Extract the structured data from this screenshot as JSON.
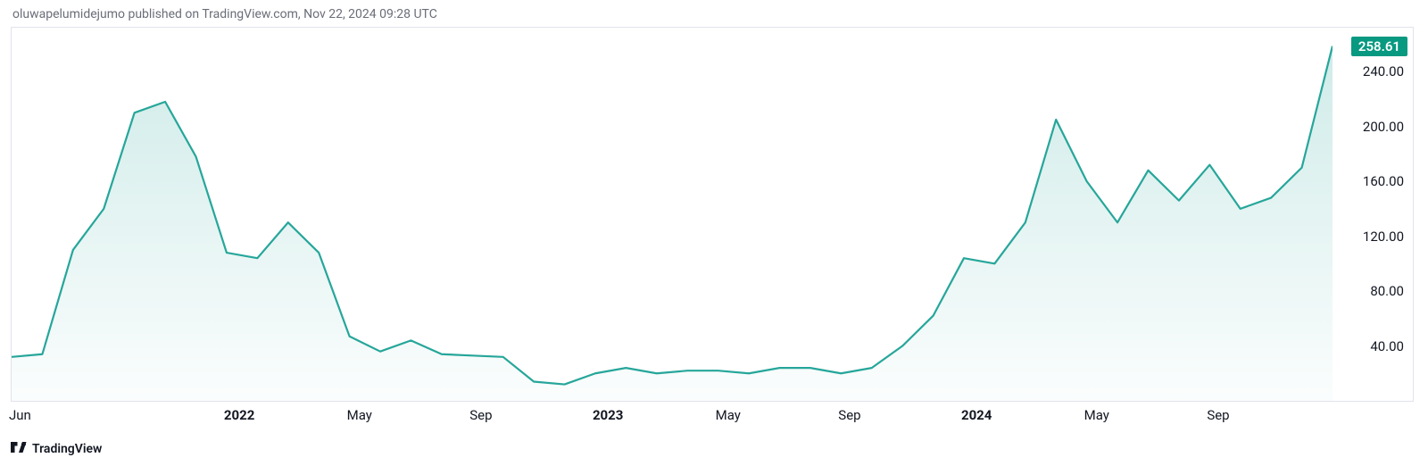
{
  "caption": "oluwapelumidejumo published on TradingView.com, Nov 22, 2024 09:28 UTC",
  "brand": "TradingView",
  "chart": {
    "type": "area",
    "line_color": "#26a69a",
    "line_width": 2.2,
    "fill_top_color": "rgba(38,166,154,0.22)",
    "fill_bottom_color": "rgba(38,166,154,0.02)",
    "background_color": "#ffffff",
    "border_color": "#e0e3eb",
    "tick_color": "#131722",
    "tick_fontsize": 15,
    "price_tag_bg": "#089981",
    "price_tag_text_color": "#ffffff",
    "current_value": "258.61",
    "y": {
      "min": 0,
      "max": 272,
      "ticks": [
        40.0,
        80.0,
        120.0,
        160.0,
        200.0,
        240.0
      ],
      "tick_labels": [
        "40.00",
        "80.00",
        "120.00",
        "160.00",
        "200.00",
        "240.00"
      ]
    },
    "x": {
      "min": 0,
      "max": 43,
      "ticks": [
        {
          "pos": 0,
          "label": "Jun",
          "bold": false
        },
        {
          "pos": 7,
          "label": "2022",
          "bold": true
        },
        {
          "pos": 11,
          "label": "May",
          "bold": false
        },
        {
          "pos": 15,
          "label": "Sep",
          "bold": false
        },
        {
          "pos": 19,
          "label": "2023",
          "bold": true
        },
        {
          "pos": 23,
          "label": "May",
          "bold": false
        },
        {
          "pos": 27,
          "label": "Sep",
          "bold": false
        },
        {
          "pos": 31,
          "label": "2024",
          "bold": true
        },
        {
          "pos": 35,
          "label": "May",
          "bold": false
        },
        {
          "pos": 39,
          "label": "Sep",
          "bold": false
        }
      ]
    },
    "series": [
      {
        "x": 0,
        "y": 32
      },
      {
        "x": 1,
        "y": 34
      },
      {
        "x": 2,
        "y": 110
      },
      {
        "x": 3,
        "y": 140
      },
      {
        "x": 4,
        "y": 210
      },
      {
        "x": 5,
        "y": 218
      },
      {
        "x": 6,
        "y": 178
      },
      {
        "x": 7,
        "y": 108
      },
      {
        "x": 8,
        "y": 104
      },
      {
        "x": 9,
        "y": 130
      },
      {
        "x": 10,
        "y": 108
      },
      {
        "x": 11,
        "y": 47
      },
      {
        "x": 12,
        "y": 36
      },
      {
        "x": 13,
        "y": 44
      },
      {
        "x": 14,
        "y": 34
      },
      {
        "x": 15,
        "y": 33
      },
      {
        "x": 16,
        "y": 32
      },
      {
        "x": 17,
        "y": 14
      },
      {
        "x": 18,
        "y": 12
      },
      {
        "x": 19,
        "y": 20
      },
      {
        "x": 20,
        "y": 24
      },
      {
        "x": 21,
        "y": 20
      },
      {
        "x": 22,
        "y": 22
      },
      {
        "x": 23,
        "y": 22
      },
      {
        "x": 24,
        "y": 20
      },
      {
        "x": 25,
        "y": 24
      },
      {
        "x": 26,
        "y": 24
      },
      {
        "x": 27,
        "y": 20
      },
      {
        "x": 28,
        "y": 24
      },
      {
        "x": 29,
        "y": 40
      },
      {
        "x": 30,
        "y": 62
      },
      {
        "x": 31,
        "y": 104
      },
      {
        "x": 32,
        "y": 100
      },
      {
        "x": 33,
        "y": 130
      },
      {
        "x": 34,
        "y": 205
      },
      {
        "x": 35,
        "y": 160
      },
      {
        "x": 36,
        "y": 130
      },
      {
        "x": 37,
        "y": 168
      },
      {
        "x": 38,
        "y": 146
      },
      {
        "x": 39,
        "y": 172
      },
      {
        "x": 40,
        "y": 140
      },
      {
        "x": 41,
        "y": 148
      },
      {
        "x": 42,
        "y": 170
      },
      {
        "x": 43,
        "y": 258.61
      }
    ]
  }
}
